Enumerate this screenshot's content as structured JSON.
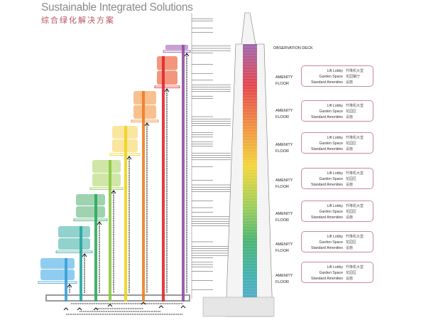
{
  "title": "Sustainable Integrated Solutions",
  "subtitle": "综合绿化解决方案",
  "observation_label": "OBSERVATION DECK",
  "zones": [
    {
      "color": "#8e4fa3",
      "light": "#c7a1d3"
    },
    {
      "color": "#e0262f",
      "light": "#f4967d"
    },
    {
      "color": "#ef7d21",
      "light": "#f8c08f"
    },
    {
      "color": "#f1d21a",
      "light": "#fbe6a0"
    },
    {
      "color": "#8cc63f",
      "light": "#cfe6a6"
    },
    {
      "color": "#2ea85a",
      "light": "#9fd3b0"
    },
    {
      "color": "#25a59e",
      "light": "#92d2cc"
    },
    {
      "color": "#3a9fd8",
      "light": "#8fcdf0"
    }
  ],
  "amenity_floors": [
    {
      "label": "AMENITY FLOOR",
      "en": [
        "Lift Lobby",
        "Garden Space",
        "Standard Amenities"
      ],
      "cn": [
        "升降机大堂",
        "花园餐厅",
        "设施"
      ]
    },
    {
      "label": "AMENITY FLOOR",
      "en": [
        "Lift Lobby",
        "Garden Space",
        "Standard Amenities"
      ],
      "cn": [
        "升降机大堂",
        "花园区",
        "设施"
      ]
    },
    {
      "label": "AMENITY FLOOR",
      "en": [
        "Lift Lobby",
        "Garden Space",
        "Standard Amenities"
      ],
      "cn": [
        "升降机大堂",
        "花园区",
        "设施"
      ]
    },
    {
      "label": "AMENITY FLOOR",
      "en": [
        "Lift Lobby",
        "Garden Space",
        "Standard Amenities"
      ],
      "cn": [
        "升降机大堂",
        "花园区",
        "设施"
      ]
    },
    {
      "label": "AMENITY FLOOR",
      "en": [
        "Lift Lobby",
        "Garden Space",
        "Standard Amenities"
      ],
      "cn": [
        "升降机大堂",
        "花园区",
        "设施"
      ]
    },
    {
      "label": "AMENITY FLOOR",
      "en": [
        "Lift Lobby",
        "Garden Space",
        "Standard Amenities"
      ],
      "cn": [
        "升降机大堂",
        "花园区",
        "设施"
      ]
    },
    {
      "label": "AMENITY FLOOR",
      "en": [
        "Lift Lobby",
        "Garden Space",
        "Standard Amenities"
      ],
      "cn": [
        "升降机大堂",
        "花园区",
        "设施"
      ]
    }
  ]
}
